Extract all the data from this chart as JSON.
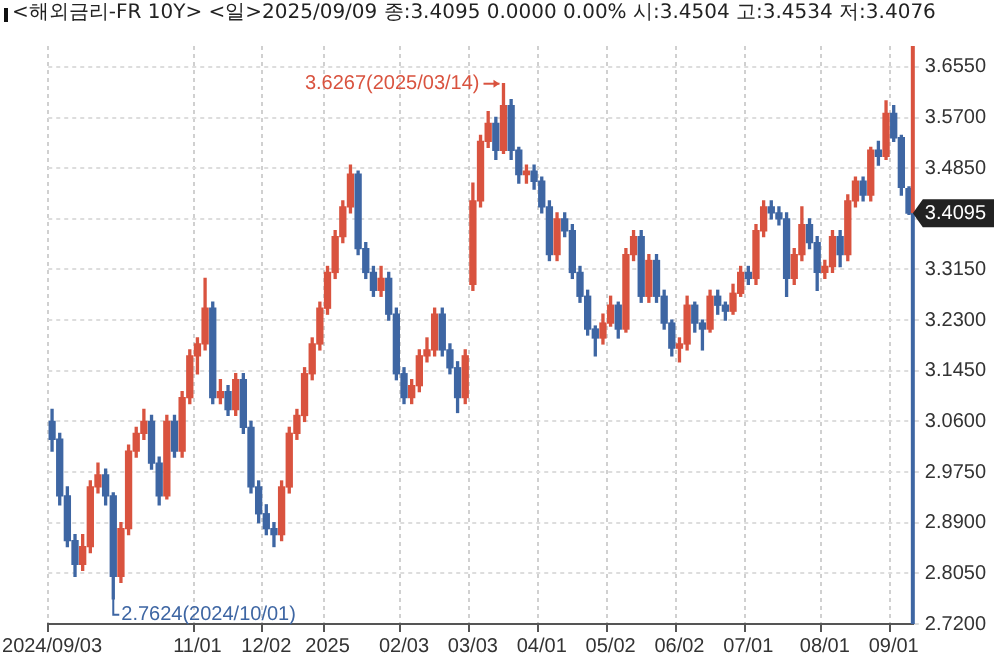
{
  "chart_data": {
    "type": "candlestick",
    "title": "<해외금리-FR 10Y> <일>2025/09/09 종:3.4095 0.0000 0.00% 시:3.4504 고:3.4534 저:3.4076",
    "categories": [
      "2024/09/03",
      null,
      null,
      null,
      null,
      null,
      null,
      null,
      null,
      null,
      null,
      null,
      null,
      null,
      null,
      null,
      null,
      null,
      null,
      "11/01",
      null,
      null,
      null,
      null,
      null,
      null,
      null,
      null,
      "12/02",
      null,
      null,
      null,
      null,
      null,
      null,
      null,
      "2025",
      null,
      null,
      null,
      null,
      null,
      null,
      null,
      null,
      null,
      "02/03",
      null,
      null,
      null,
      null,
      null,
      null,
      null,
      null,
      "03/03",
      null,
      null,
      null,
      null,
      null,
      null,
      null,
      null,
      "04/01",
      null,
      null,
      null,
      null,
      null,
      null,
      null,
      null,
      "05/02",
      null,
      null,
      null,
      null,
      null,
      null,
      null,
      null,
      "06/02",
      null,
      null,
      null,
      null,
      null,
      null,
      null,
      null,
      "07/01",
      null,
      null,
      null,
      null,
      null,
      null,
      null,
      null,
      null,
      "08/01",
      null,
      null,
      null,
      null,
      null,
      null,
      null,
      null,
      "09/01",
      null,
      null
    ],
    "ohlc": [
      [
        3.06,
        3.08,
        3.01,
        3.03
      ],
      [
        3.03,
        3.04,
        2.92,
        2.935
      ],
      [
        2.935,
        2.95,
        2.85,
        2.86
      ],
      [
        2.86,
        2.87,
        2.8,
        2.82
      ],
      [
        2.82,
        2.87,
        2.81,
        2.85
      ],
      [
        2.85,
        2.96,
        2.84,
        2.95
      ],
      [
        2.95,
        2.99,
        2.94,
        2.97
      ],
      [
        2.97,
        2.98,
        2.92,
        2.935
      ],
      [
        2.935,
        2.94,
        2.7624,
        2.8
      ],
      [
        2.8,
        2.89,
        2.79,
        2.88
      ],
      [
        2.88,
        3.02,
        2.87,
        3.01
      ],
      [
        3.01,
        3.05,
        3.0,
        3.04
      ],
      [
        3.04,
        3.08,
        3.03,
        3.06
      ],
      [
        3.06,
        3.07,
        2.98,
        2.99
      ],
      [
        2.99,
        3.0,
        2.92,
        2.935
      ],
      [
        2.935,
        3.07,
        2.93,
        3.06
      ],
      [
        3.06,
        3.07,
        3.0,
        3.01
      ],
      [
        3.01,
        3.11,
        3.0,
        3.1
      ],
      [
        3.1,
        3.18,
        3.09,
        3.17
      ],
      [
        3.17,
        3.2,
        3.14,
        3.19
      ],
      [
        3.19,
        3.3,
        3.18,
        3.25
      ],
      [
        3.25,
        3.26,
        3.09,
        3.1
      ],
      [
        3.1,
        3.13,
        3.09,
        3.11
      ],
      [
        3.11,
        3.12,
        3.07,
        3.08
      ],
      [
        3.08,
        3.14,
        3.07,
        3.13
      ],
      [
        3.13,
        3.14,
        3.04,
        3.05
      ],
      [
        3.05,
        3.06,
        2.94,
        2.95
      ],
      [
        2.95,
        2.96,
        2.89,
        2.905
      ],
      [
        2.905,
        2.92,
        2.87,
        2.88
      ],
      [
        2.88,
        2.89,
        2.85,
        2.87
      ],
      [
        2.87,
        2.96,
        2.86,
        2.95
      ],
      [
        2.95,
        3.05,
        2.94,
        3.04
      ],
      [
        3.04,
        3.08,
        3.03,
        3.07
      ],
      [
        3.07,
        3.15,
        3.06,
        3.14
      ],
      [
        3.14,
        3.2,
        3.13,
        3.19
      ],
      [
        3.19,
        3.26,
        3.18,
        3.25
      ],
      [
        3.25,
        3.32,
        3.24,
        3.31
      ],
      [
        3.31,
        3.38,
        3.3,
        3.37
      ],
      [
        3.37,
        3.43,
        3.36,
        3.42
      ],
      [
        3.42,
        3.49,
        3.41,
        3.475
      ],
      [
        3.475,
        3.48,
        3.34,
        3.35
      ],
      [
        3.35,
        3.36,
        3.3,
        3.31
      ],
      [
        3.31,
        3.32,
        3.27,
        3.28
      ],
      [
        3.28,
        3.32,
        3.27,
        3.3
      ],
      [
        3.3,
        3.31,
        3.23,
        3.24
      ],
      [
        3.24,
        3.25,
        3.13,
        3.14
      ],
      [
        3.14,
        3.15,
        3.09,
        3.1
      ],
      [
        3.1,
        3.13,
        3.09,
        3.12
      ],
      [
        3.12,
        3.18,
        3.11,
        3.17
      ],
      [
        3.17,
        3.2,
        3.16,
        3.18
      ],
      [
        3.18,
        3.25,
        3.17,
        3.24
      ],
      [
        3.24,
        3.25,
        3.17,
        3.18
      ],
      [
        3.18,
        3.19,
        3.14,
        3.15
      ],
      [
        3.15,
        3.16,
        3.075,
        3.1
      ],
      [
        3.1,
        3.18,
        3.09,
        3.17
      ],
      [
        3.29,
        3.46,
        3.28,
        3.43
      ],
      [
        3.43,
        3.54,
        3.42,
        3.53
      ],
      [
        3.53,
        3.58,
        3.52,
        3.56
      ],
      [
        3.56,
        3.57,
        3.5,
        3.515
      ],
      [
        3.515,
        3.6267,
        3.51,
        3.59
      ],
      [
        3.59,
        3.6,
        3.5,
        3.515
      ],
      [
        3.515,
        3.52,
        3.46,
        3.474
      ],
      [
        3.474,
        3.49,
        3.46,
        3.48
      ],
      [
        3.48,
        3.49,
        3.45,
        3.463
      ],
      [
        3.463,
        3.47,
        3.41,
        3.42
      ],
      [
        3.42,
        3.43,
        3.33,
        3.34
      ],
      [
        3.34,
        3.41,
        3.33,
        3.4
      ],
      [
        3.4,
        3.41,
        3.37,
        3.38
      ],
      [
        3.38,
        3.39,
        3.3,
        3.31
      ],
      [
        3.31,
        3.32,
        3.26,
        3.27
      ],
      [
        3.27,
        3.28,
        3.205,
        3.215
      ],
      [
        3.215,
        3.22,
        3.17,
        3.2
      ],
      [
        3.2,
        3.24,
        3.19,
        3.225
      ],
      [
        3.225,
        3.27,
        3.22,
        3.255
      ],
      [
        3.255,
        3.26,
        3.2,
        3.215
      ],
      [
        3.215,
        3.35,
        3.21,
        3.34
      ],
      [
        3.34,
        3.38,
        3.33,
        3.37
      ],
      [
        3.37,
        3.38,
        3.26,
        3.27
      ],
      [
        3.27,
        3.34,
        3.26,
        3.33
      ],
      [
        3.33,
        3.34,
        3.26,
        3.27
      ],
      [
        3.27,
        3.28,
        3.215,
        3.225
      ],
      [
        3.225,
        3.23,
        3.17,
        3.183
      ],
      [
        3.183,
        3.2,
        3.16,
        3.19
      ],
      [
        3.19,
        3.27,
        3.18,
        3.255
      ],
      [
        3.255,
        3.26,
        3.21,
        3.225
      ],
      [
        3.225,
        3.23,
        3.18,
        3.215
      ],
      [
        3.215,
        3.28,
        3.21,
        3.27
      ],
      [
        3.27,
        3.28,
        3.24,
        3.255
      ],
      [
        3.255,
        3.26,
        3.23,
        3.245
      ],
      [
        3.245,
        3.29,
        3.24,
        3.275
      ],
      [
        3.275,
        3.32,
        3.27,
        3.31
      ],
      [
        3.31,
        3.32,
        3.29,
        3.3
      ],
      [
        3.3,
        3.39,
        3.29,
        3.38
      ],
      [
        3.38,
        3.43,
        3.37,
        3.42
      ],
      [
        3.42,
        3.43,
        3.4,
        3.41
      ],
      [
        3.41,
        3.42,
        3.39,
        3.4
      ],
      [
        3.4,
        3.41,
        3.27,
        3.3
      ],
      [
        3.3,
        3.35,
        3.29,
        3.34
      ],
      [
        3.34,
        3.42,
        3.33,
        3.39
      ],
      [
        3.39,
        3.4,
        3.35,
        3.36
      ],
      [
        3.36,
        3.37,
        3.28,
        3.31
      ],
      [
        3.31,
        3.33,
        3.3,
        3.32
      ],
      [
        3.32,
        3.38,
        3.31,
        3.37
      ],
      [
        3.37,
        3.38,
        3.32,
        3.34
      ],
      [
        3.34,
        3.44,
        3.33,
        3.43
      ],
      [
        3.43,
        3.47,
        3.42,
        3.463
      ],
      [
        3.463,
        3.47,
        3.43,
        3.44
      ],
      [
        3.44,
        3.52,
        3.43,
        3.515
      ],
      [
        3.515,
        3.53,
        3.49,
        3.505
      ],
      [
        3.505,
        3.598,
        3.5,
        3.577
      ],
      [
        3.577,
        3.59,
        3.53,
        3.536
      ],
      [
        3.536,
        3.54,
        3.44,
        3.453
      ],
      [
        3.4504,
        3.4534,
        3.4076,
        3.4095
      ]
    ],
    "ylim": [
      2.72,
      3.69
    ],
    "yticks": [
      {
        "value": 2.72,
        "label": "2.7200"
      },
      {
        "value": 2.805,
        "label": "2.8050"
      },
      {
        "value": 2.89,
        "label": "2.8900"
      },
      {
        "value": 2.975,
        "label": "2.9750"
      },
      {
        "value": 3.06,
        "label": "3.0600"
      },
      {
        "value": 3.145,
        "label": "3.1450"
      },
      {
        "value": 3.23,
        "label": "3.2300"
      },
      {
        "value": 3.315,
        "label": "3.3150"
      },
      {
        "value": 3.4,
        "label": null
      },
      {
        "value": 3.485,
        "label": "3.4850"
      },
      {
        "value": 3.57,
        "label": "3.5700"
      },
      {
        "value": 3.655,
        "label": "3.6550"
      }
    ],
    "grid": true,
    "annotations": [
      "3.6267(2025/03/14)",
      "2.7624(2024/10/01)",
      "3.4095"
    ]
  }
}
